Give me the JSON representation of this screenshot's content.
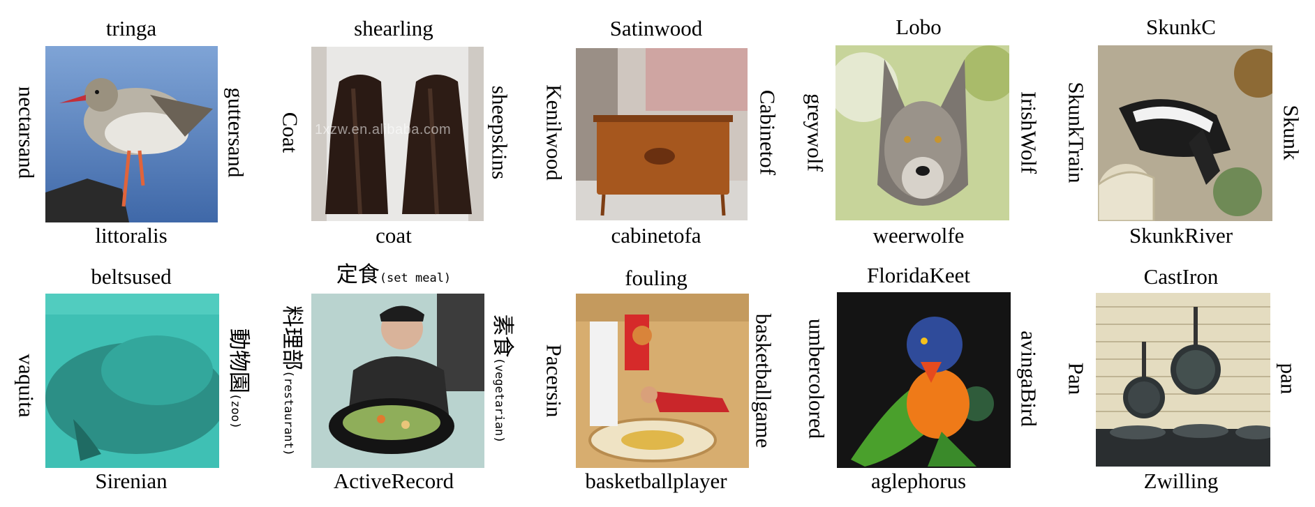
{
  "grid": [
    {
      "top": "tringa",
      "bottom": "littoralis",
      "left": "nectarsand",
      "right": "guttersand"
    },
    {
      "top": "shearling",
      "bottom": "coat",
      "left": "Coat",
      "right": "sheepskins",
      "watermark": "1xzw.en.alibaba.com"
    },
    {
      "top": "Satinwood",
      "bottom": "cabinetofa",
      "left": "Kenilwood",
      "right": "Cabinetof"
    },
    {
      "top": "Lobo",
      "bottom": "weerwolfe",
      "left": "greywolf",
      "right": "IrishWolf"
    },
    {
      "top": "SkunkC",
      "bottom": "SkunkRiver",
      "left": "SkunkTrain",
      "right": "Skunk"
    },
    {
      "top": "beltsused",
      "bottom": "Sirenian",
      "left": "vaquita",
      "right": "動物園",
      "right_sub": "(zoo)"
    },
    {
      "top": "定食",
      "top_sub": "(set meal)",
      "bottom": "ActiveRecord",
      "left": "料理部",
      "left_sub": "(restaurant)",
      "right": "素食",
      "right_sub": "(vegetarian)"
    },
    {
      "top": "fouling",
      "bottom": "basketballplayer",
      "left": "Pacersin",
      "right": "basketballgame"
    },
    {
      "top": "FloridaKeet",
      "bottom": "aglephorus",
      "left": "umbercolored",
      "right": "avingaBird"
    },
    {
      "top": "CastIron",
      "bottom": "Zwilling",
      "left": "Pan",
      "right": "pan"
    }
  ]
}
